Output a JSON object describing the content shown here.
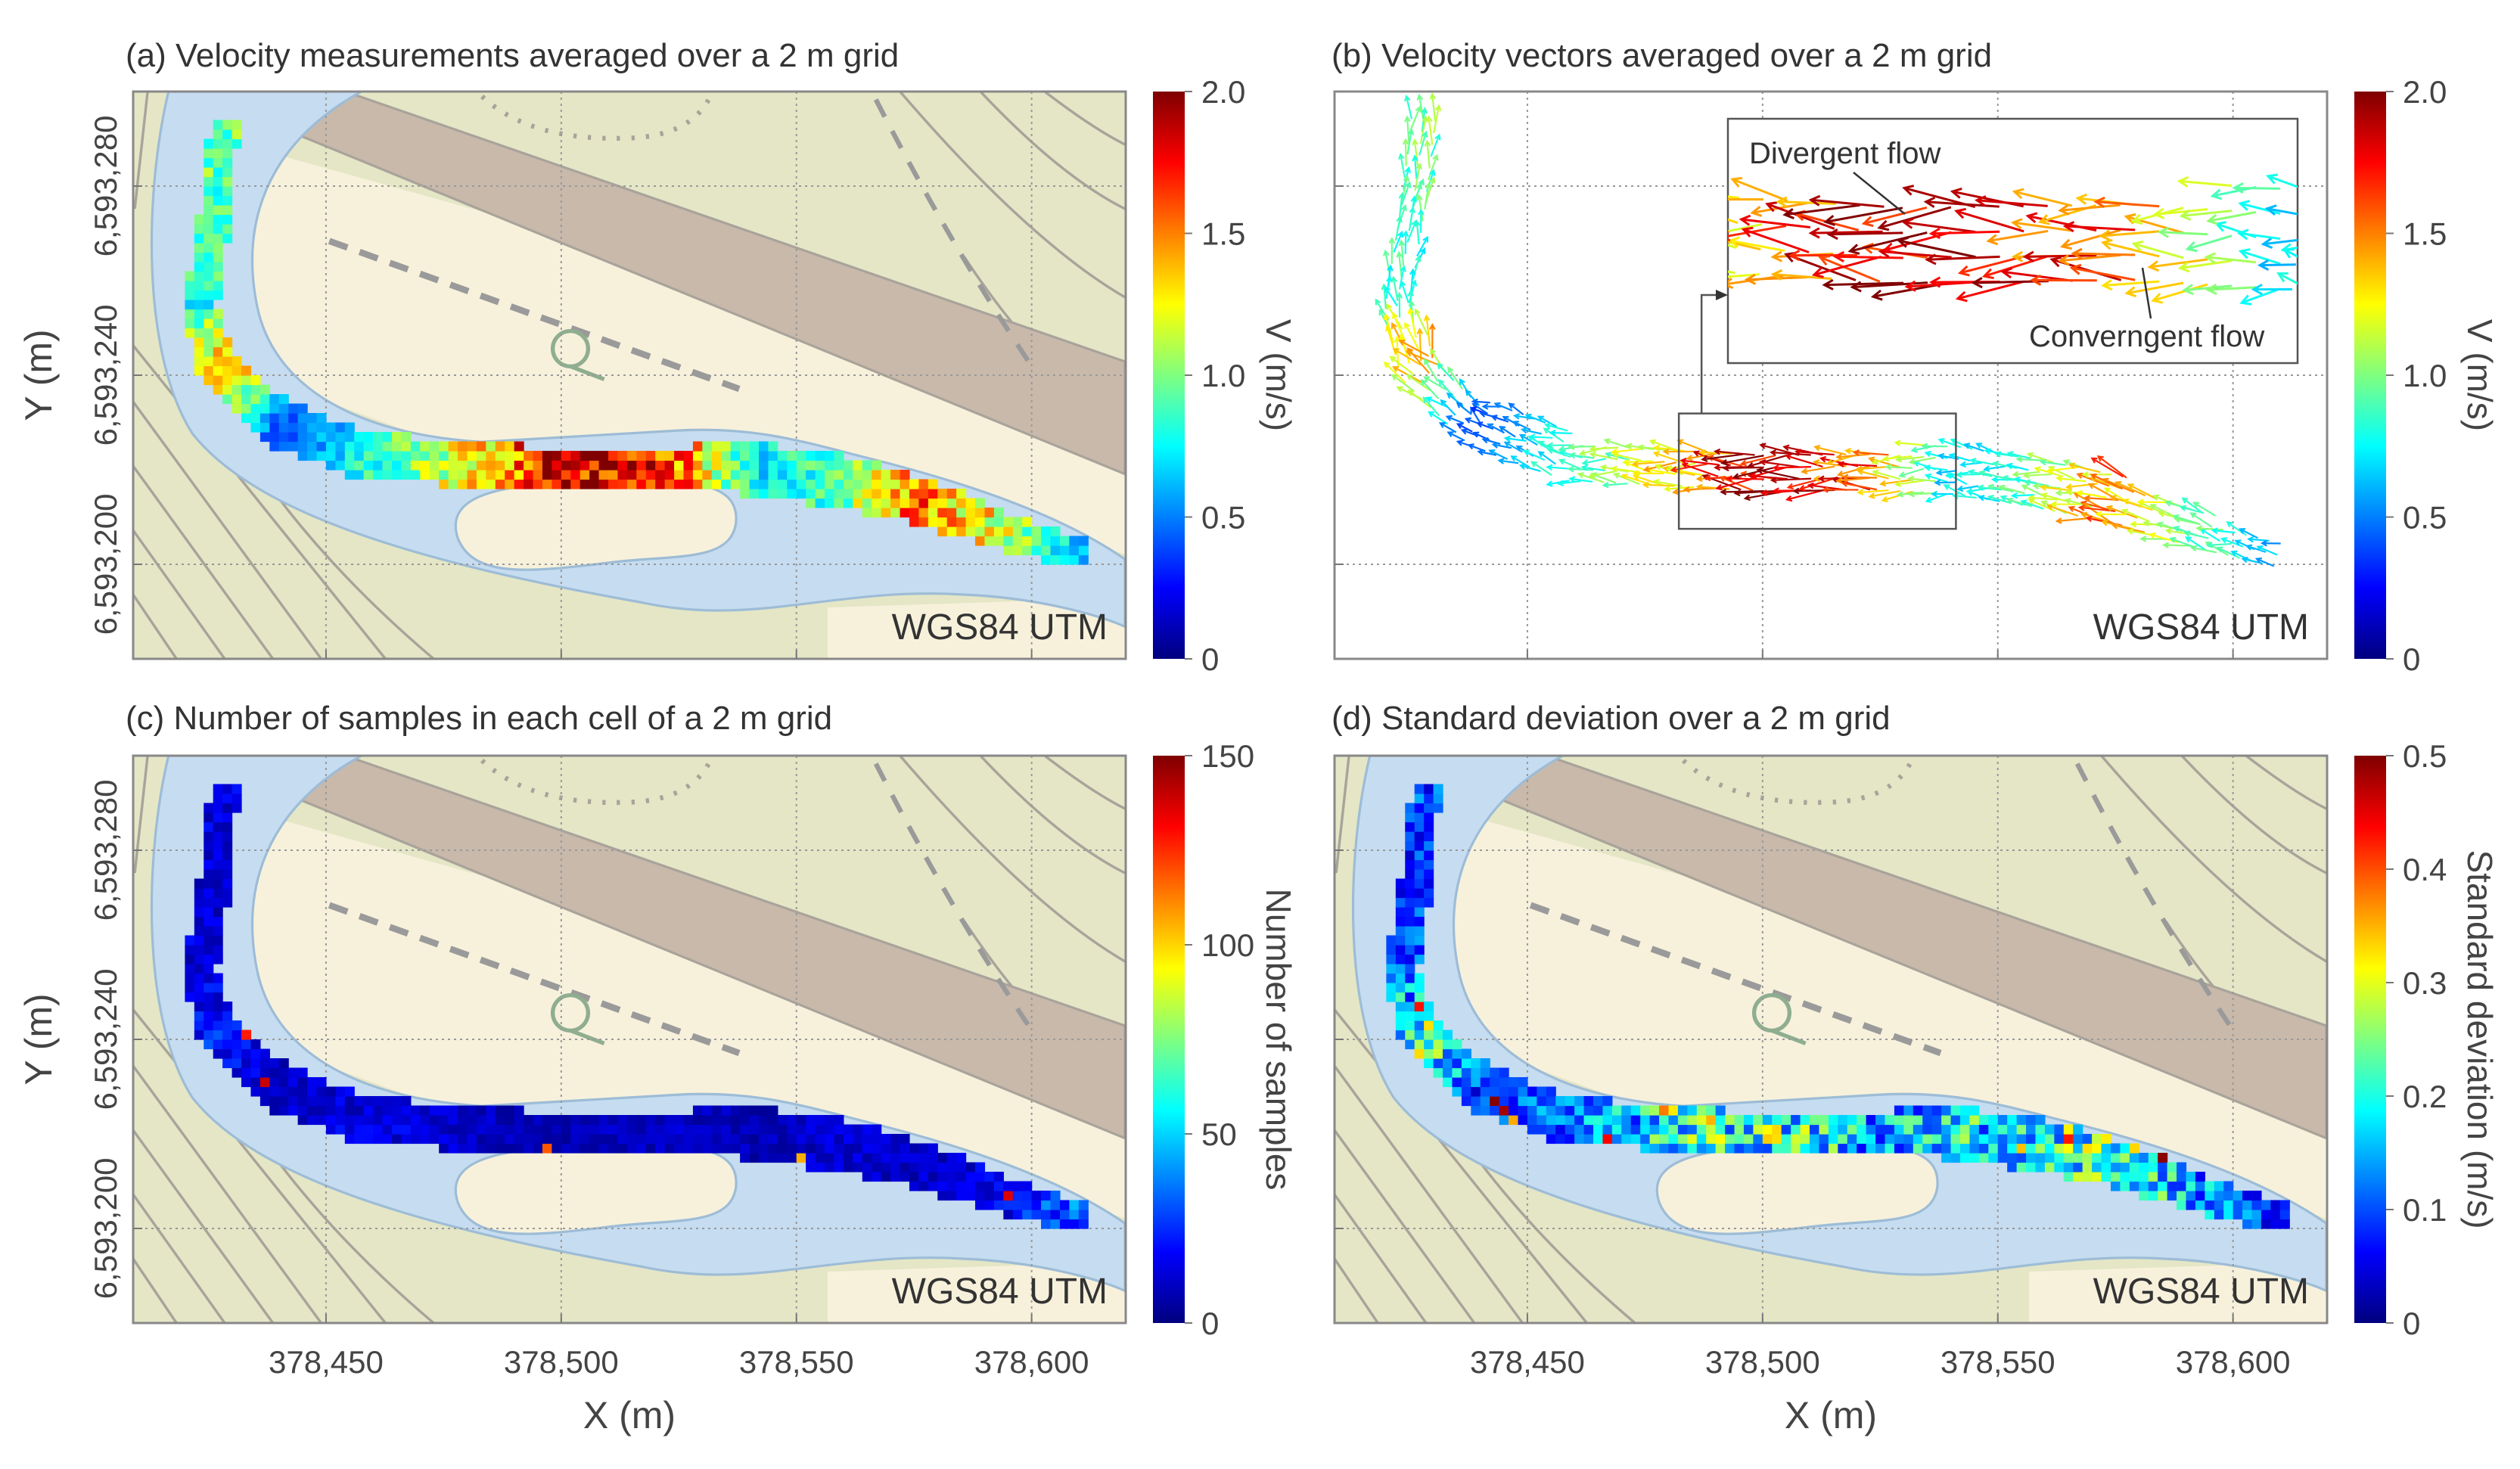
{
  "axes": {
    "xlabel": "X (m)",
    "ylabel": "Y (m)",
    "xticks": [
      378450,
      378500,
      378550,
      378600
    ],
    "xtick_labels": [
      "378,450",
      "378,500",
      "378,550",
      "378,600"
    ],
    "yticks": [
      6593200,
      6593240,
      6593280
    ],
    "ytick_labels": [
      "6,593,200",
      "6,593,240",
      "6,593,280"
    ],
    "xlim": [
      378409,
      378620
    ],
    "ylim": [
      6593180,
      6593300
    ],
    "grid": true,
    "crs_label": "WGS84 UTM"
  },
  "channel": {
    "centerline": [
      [
        378428.4,
        6593293.9
      ],
      [
        378426.7,
        6593275.3
      ],
      [
        378423.3,
        6593254.9
      ],
      [
        378426.7,
        6593241.4
      ],
      [
        378440.4,
        6593229.5
      ],
      [
        378459.2,
        6593222.7
      ],
      [
        378483.2,
        6593221.0
      ],
      [
        378500.3,
        6593220.0
      ],
      [
        378524.3,
        6593220.3
      ],
      [
        378541.4,
        6593220.3
      ],
      [
        378558.5,
        6593217.6
      ],
      [
        378575.7,
        6593213.6
      ],
      [
        378592.8,
        6593207.5
      ],
      [
        378609.9,
        6593202.4
      ]
    ],
    "halfwidth_m": [
      3,
      3.5,
      3.5,
      4,
      5,
      5,
      4.5,
      4.5,
      4.5,
      5.5,
      5.5,
      5,
      4,
      3
    ]
  },
  "chart_data": [
    {
      "type": "heatmap",
      "title": "(a) Velocity measurements averaged over a 2 m grid",
      "cell_size_m": 2,
      "values_along_centerline": [
        1.0,
        0.9,
        0.8,
        1.5,
        0.4,
        0.8,
        1.3,
        1.9,
        1.6,
        0.7,
        0.9,
        1.5,
        1.2,
        0.6
      ],
      "noise": 0.45,
      "colorbar": {
        "label": "V (m/s)",
        "min": 0,
        "max": 2,
        "ticks": [
          0,
          0.5,
          1,
          1.5,
          2
        ],
        "tick_labels": [
          "0",
          "0.5",
          "1.0",
          "1.5",
          "2.0"
        ]
      }
    },
    {
      "type": "quiver",
      "title": "(b) Velocity vectors averaged over a 2 m grid",
      "values_along_centerline": [
        1.0,
        0.9,
        0.8,
        1.4,
        0.4,
        0.8,
        1.3,
        1.9,
        1.6,
        0.7,
        0.9,
        1.5,
        1.0,
        0.6
      ],
      "noise": 0.35,
      "zoom_region": {
        "xlim": [
          378482.2,
          378541.1
        ],
        "ylim": [
          6593207.5,
          6593231.9
        ]
      },
      "annotations": [
        "Divergent flow",
        "Converngent flow"
      ],
      "colorbar": {
        "label": "V (m/s)",
        "min": 0,
        "max": 2,
        "ticks": [
          0,
          0.5,
          1,
          1.5,
          2
        ],
        "tick_labels": [
          "0",
          "0.5",
          "1.0",
          "1.5",
          "2.0"
        ]
      }
    },
    {
      "type": "heatmap",
      "title": "(c) Number of samples in each cell of a 2 m grid",
      "cell_size_m": 2,
      "values_along_centerline": [
        15,
        12,
        14,
        22,
        10,
        16,
        10,
        8,
        10,
        8,
        12,
        10,
        15,
        35
      ],
      "noise": 0.9,
      "colorbar": {
        "label": "Number of samples",
        "min": 0,
        "max": 150,
        "ticks": [
          0,
          50,
          100,
          150
        ],
        "tick_labels": [
          "0",
          "50",
          "100",
          "150"
        ]
      }
    },
    {
      "type": "heatmap",
      "title": "(d) Standard deviation over a 2 m grid",
      "cell_size_m": 2,
      "values_along_centerline": [
        0.1,
        0.08,
        0.1,
        0.25,
        0.08,
        0.12,
        0.2,
        0.22,
        0.15,
        0.18,
        0.2,
        0.22,
        0.14,
        0.08
      ],
      "noise": 0.9,
      "colorbar": {
        "label": "Standard deviation (m/s)",
        "min": 0,
        "max": 0.5,
        "ticks": [
          0,
          0.1,
          0.2,
          0.3,
          0.4,
          0.5
        ],
        "tick_labels": [
          "0",
          "0.1",
          "0.2",
          "0.3",
          "0.4",
          "0.5"
        ]
      }
    }
  ],
  "colors": {
    "land": "#e4e6c6",
    "land_beige": "#f7f1dc",
    "road": "#c8b9ab",
    "water": "#c6dcf0",
    "water_edge": "#9dbcd6",
    "contour": "#a9a39a"
  }
}
